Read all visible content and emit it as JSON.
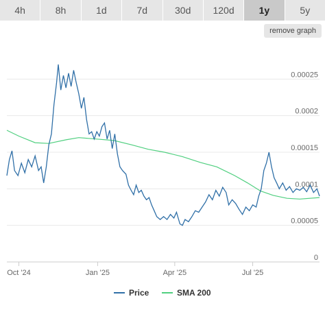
{
  "ranges": {
    "tabs": [
      {
        "label": "4h",
        "active": false
      },
      {
        "label": "8h",
        "active": false
      },
      {
        "label": "1d",
        "active": false
      },
      {
        "label": "7d",
        "active": false
      },
      {
        "label": "30d",
        "active": false
      },
      {
        "label": "120d",
        "active": false
      },
      {
        "label": "1y",
        "active": true
      },
      {
        "label": "5y",
        "active": false
      }
    ]
  },
  "controls": {
    "remove_graph_label": "remove graph"
  },
  "colors": {
    "price": "#2f6fa7",
    "sma": "#4fcf7f",
    "grid": "#e8e8e8",
    "axis": "#cccccc"
  },
  "chart_data": {
    "type": "line",
    "title": "",
    "xlabel": "",
    "ylabel": "",
    "grid": true,
    "legend_position": "bottom-center",
    "ylim": [
      0,
      0.0003
    ],
    "xlim": [
      "2024-09-17",
      "2025-09-17"
    ],
    "y_ticks": [
      {
        "value": 0,
        "label": "0"
      },
      {
        "value": 5e-05,
        "label": "0.00005"
      },
      {
        "value": 0.0001,
        "label": "0.0001"
      },
      {
        "value": 0.00015,
        "label": "0.00015"
      },
      {
        "value": 0.0002,
        "label": "0.0002"
      },
      {
        "value": 0.00025,
        "label": "0.00025"
      }
    ],
    "x_ticks": [
      {
        "date": "2024-10-01",
        "label": "Oct '24"
      },
      {
        "date": "2025-01-01",
        "label": "Jan '25"
      },
      {
        "date": "2025-04-01",
        "label": "Apr '25"
      },
      {
        "date": "2025-07-01",
        "label": "Jul '25"
      }
    ],
    "series": [
      {
        "name": "Price",
        "color": "#2f6fa7",
        "points": [
          [
            "2024-09-17",
            0.000118
          ],
          [
            "2024-09-20",
            0.00014
          ],
          [
            "2024-09-23",
            0.000152
          ],
          [
            "2024-09-26",
            0.000125
          ],
          [
            "2024-09-30",
            0.000118
          ],
          [
            "2024-10-04",
            0.000135
          ],
          [
            "2024-10-08",
            0.000122
          ],
          [
            "2024-10-12",
            0.00014
          ],
          [
            "2024-10-16",
            0.00013
          ],
          [
            "2024-10-20",
            0.000145
          ],
          [
            "2024-10-24",
            0.000125
          ],
          [
            "2024-10-27",
            0.00013
          ],
          [
            "2024-10-30",
            0.000108
          ],
          [
            "2024-11-02",
            0.00013
          ],
          [
            "2024-11-05",
            0.00016
          ],
          [
            "2024-11-08",
            0.000175
          ],
          [
            "2024-11-11",
            0.000215
          ],
          [
            "2024-11-14",
            0.000245
          ],
          [
            "2024-11-16",
            0.00027
          ],
          [
            "2024-11-19",
            0.000235
          ],
          [
            "2024-11-22",
            0.000255
          ],
          [
            "2024-11-25",
            0.000238
          ],
          [
            "2024-11-28",
            0.000258
          ],
          [
            "2024-12-01",
            0.00024
          ],
          [
            "2024-12-04",
            0.000262
          ],
          [
            "2024-12-07",
            0.000245
          ],
          [
            "2024-12-10",
            0.00023
          ],
          [
            "2024-12-13",
            0.00021
          ],
          [
            "2024-12-16",
            0.000225
          ],
          [
            "2024-12-19",
            0.000195
          ],
          [
            "2024-12-22",
            0.000175
          ],
          [
            "2024-12-25",
            0.000178
          ],
          [
            "2024-12-28",
            0.000168
          ],
          [
            "2024-12-31",
            0.000178
          ],
          [
            "2025-01-03",
            0.000172
          ],
          [
            "2025-01-06",
            0.000185
          ],
          [
            "2025-01-09",
            0.00019
          ],
          [
            "2025-01-12",
            0.000168
          ],
          [
            "2025-01-15",
            0.00018
          ],
          [
            "2025-01-18",
            0.000155
          ],
          [
            "2025-01-21",
            0.000175
          ],
          [
            "2025-01-24",
            0.000148
          ],
          [
            "2025-01-27",
            0.00013
          ],
          [
            "2025-01-30",
            0.000125
          ],
          [
            "2025-02-03",
            0.00012
          ],
          [
            "2025-02-06",
            0.000105
          ],
          [
            "2025-02-09",
            9.8e-05
          ],
          [
            "2025-02-12",
            9.2e-05
          ],
          [
            "2025-02-15",
            0.000105
          ],
          [
            "2025-02-18",
            9.5e-05
          ],
          [
            "2025-02-21",
            9.8e-05
          ],
          [
            "2025-02-24",
            9e-05
          ],
          [
            "2025-02-27",
            8.5e-05
          ],
          [
            "2025-03-02",
            8.8e-05
          ],
          [
            "2025-03-05",
            7.8e-05
          ],
          [
            "2025-03-08",
            7e-05
          ],
          [
            "2025-03-11",
            6.2e-05
          ],
          [
            "2025-03-15",
            5.8e-05
          ],
          [
            "2025-03-19",
            6.2e-05
          ],
          [
            "2025-03-23",
            5.8e-05
          ],
          [
            "2025-03-27",
            6.5e-05
          ],
          [
            "2025-03-31",
            6e-05
          ],
          [
            "2025-04-03",
            6.8e-05
          ],
          [
            "2025-04-07",
            5.2e-05
          ],
          [
            "2025-04-10",
            5e-05
          ],
          [
            "2025-04-13",
            5.8e-05
          ],
          [
            "2025-04-17",
            5.5e-05
          ],
          [
            "2025-04-21",
            6.2e-05
          ],
          [
            "2025-04-25",
            7e-05
          ],
          [
            "2025-04-29",
            6.8e-05
          ],
          [
            "2025-05-03",
            7.5e-05
          ],
          [
            "2025-05-07",
            8.2e-05
          ],
          [
            "2025-05-11",
            9.2e-05
          ],
          [
            "2025-05-15",
            8.5e-05
          ],
          [
            "2025-05-19",
            9.8e-05
          ],
          [
            "2025-05-23",
            9e-05
          ],
          [
            "2025-05-27",
            0.000102
          ],
          [
            "2025-05-31",
            9.5e-05
          ],
          [
            "2025-06-03",
            7.8e-05
          ],
          [
            "2025-06-07",
            8.5e-05
          ],
          [
            "2025-06-11",
            8e-05
          ],
          [
            "2025-06-15",
            7.2e-05
          ],
          [
            "2025-06-19",
            6.5e-05
          ],
          [
            "2025-06-23",
            7.5e-05
          ],
          [
            "2025-06-27",
            7e-05
          ],
          [
            "2025-07-01",
            7.8e-05
          ],
          [
            "2025-07-05",
            7.5e-05
          ],
          [
            "2025-07-08",
            9e-05
          ],
          [
            "2025-07-11",
            0.0001
          ],
          [
            "2025-07-14",
            0.000125
          ],
          [
            "2025-07-17",
            0.000135
          ],
          [
            "2025-07-20",
            0.00015
          ],
          [
            "2025-07-23",
            0.00013
          ],
          [
            "2025-07-26",
            0.000115
          ],
          [
            "2025-07-29",
            0.000108
          ],
          [
            "2025-08-01",
            0.0001
          ],
          [
            "2025-08-05",
            0.000108
          ],
          [
            "2025-08-09",
            9.8e-05
          ],
          [
            "2025-08-13",
            0.000103
          ],
          [
            "2025-08-17",
            9.5e-05
          ],
          [
            "2025-08-21",
            0.0001
          ],
          [
            "2025-08-25",
            9.8e-05
          ],
          [
            "2025-08-29",
            0.000102
          ],
          [
            "2025-09-02",
            9.6e-05
          ],
          [
            "2025-09-06",
            0.000105
          ],
          [
            "2025-09-10",
            9.5e-05
          ],
          [
            "2025-09-14",
            0.0001
          ],
          [
            "2025-09-17",
            9e-05
          ]
        ]
      },
      {
        "name": "SMA 200",
        "color": "#4fcf7f",
        "points": [
          [
            "2024-09-17",
            0.00018
          ],
          [
            "2024-10-01",
            0.000172
          ],
          [
            "2024-10-20",
            0.000163
          ],
          [
            "2024-11-05",
            0.000162
          ],
          [
            "2024-11-25",
            0.000167
          ],
          [
            "2024-12-10",
            0.00017
          ],
          [
            "2024-12-31",
            0.000168
          ],
          [
            "2025-01-20",
            0.000166
          ],
          [
            "2025-02-10",
            0.00016
          ],
          [
            "2025-03-01",
            0.000154
          ],
          [
            "2025-03-20",
            0.00015
          ],
          [
            "2025-04-10",
            0.000144
          ],
          [
            "2025-05-01",
            0.000136
          ],
          [
            "2025-05-20",
            0.00013
          ],
          [
            "2025-06-10",
            0.000118
          ],
          [
            "2025-06-25",
            0.000108
          ],
          [
            "2025-07-10",
            9.7e-05
          ],
          [
            "2025-07-25",
            9.1e-05
          ],
          [
            "2025-08-10",
            8.7e-05
          ],
          [
            "2025-08-25",
            8.6e-05
          ],
          [
            "2025-09-17",
            8.8e-05
          ]
        ]
      }
    ]
  }
}
